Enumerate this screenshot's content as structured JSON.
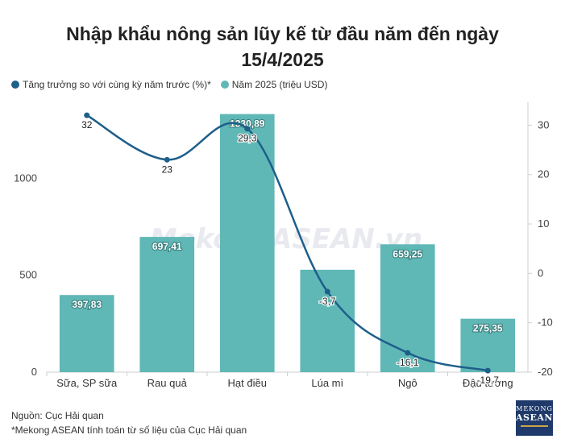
{
  "chart_data": {
    "type": "bar",
    "title": "Nhập khẩu nông sản lũy kế từ đầu năm đến ngày 15/4/2025",
    "title_lines": [
      "Nhập khẩu nông sản lũy kế từ đầu năm đến ngày",
      "15/4/2025"
    ],
    "categories": [
      "Sữa, SP sữa",
      "Rau quả",
      "Hạt điều",
      "Lúa mì",
      "Ngô",
      "Đậu tương"
    ],
    "series": [
      {
        "name": "Năm 2025 (triệu USD)",
        "type": "bar",
        "axis": "left",
        "values": [
          397.83,
          697.41,
          1330.89,
          528.0,
          659.25,
          275.35
        ],
        "labels": [
          "397,83",
          "697,41",
          "1330,89",
          "",
          "659,25",
          "275,35"
        ],
        "color": "#5fb8b6"
      },
      {
        "name": "Tăng trưởng so với cùng kỳ năm trước (%)*",
        "type": "line",
        "axis": "right",
        "values": [
          32,
          23,
          29.3,
          -3.7,
          -16.1,
          -19.7
        ],
        "labels": [
          "32",
          "23",
          "29,3",
          "-3,7",
          "-16,1",
          "-19,7"
        ],
        "color": "#1e5f8a"
      }
    ],
    "y_left": {
      "range": [
        0,
        1350
      ],
      "ticks": [
        0,
        500,
        1000
      ]
    },
    "y_right": {
      "range": [
        -20,
        33
      ],
      "ticks": [
        -20,
        -10,
        0,
        10,
        20,
        30
      ]
    },
    "legend_position": "top-left",
    "grid": false
  },
  "legend": [
    {
      "label": "Tăng trưởng so với cùng kỳ năm trước (%)*",
      "color": "#1e5f8a"
    },
    {
      "label": "Năm 2025 (triệu USD)",
      "color": "#5fb8b6"
    }
  ],
  "watermark": "MekongASEAN.vn",
  "footer": {
    "source": "Nguồn: Cục Hải quan",
    "note": "*Mekong ASEAN tính toán từ số liệu của Cục Hải quan"
  },
  "logo": {
    "line1": "MEKONG",
    "line2": "ASEAN"
  }
}
